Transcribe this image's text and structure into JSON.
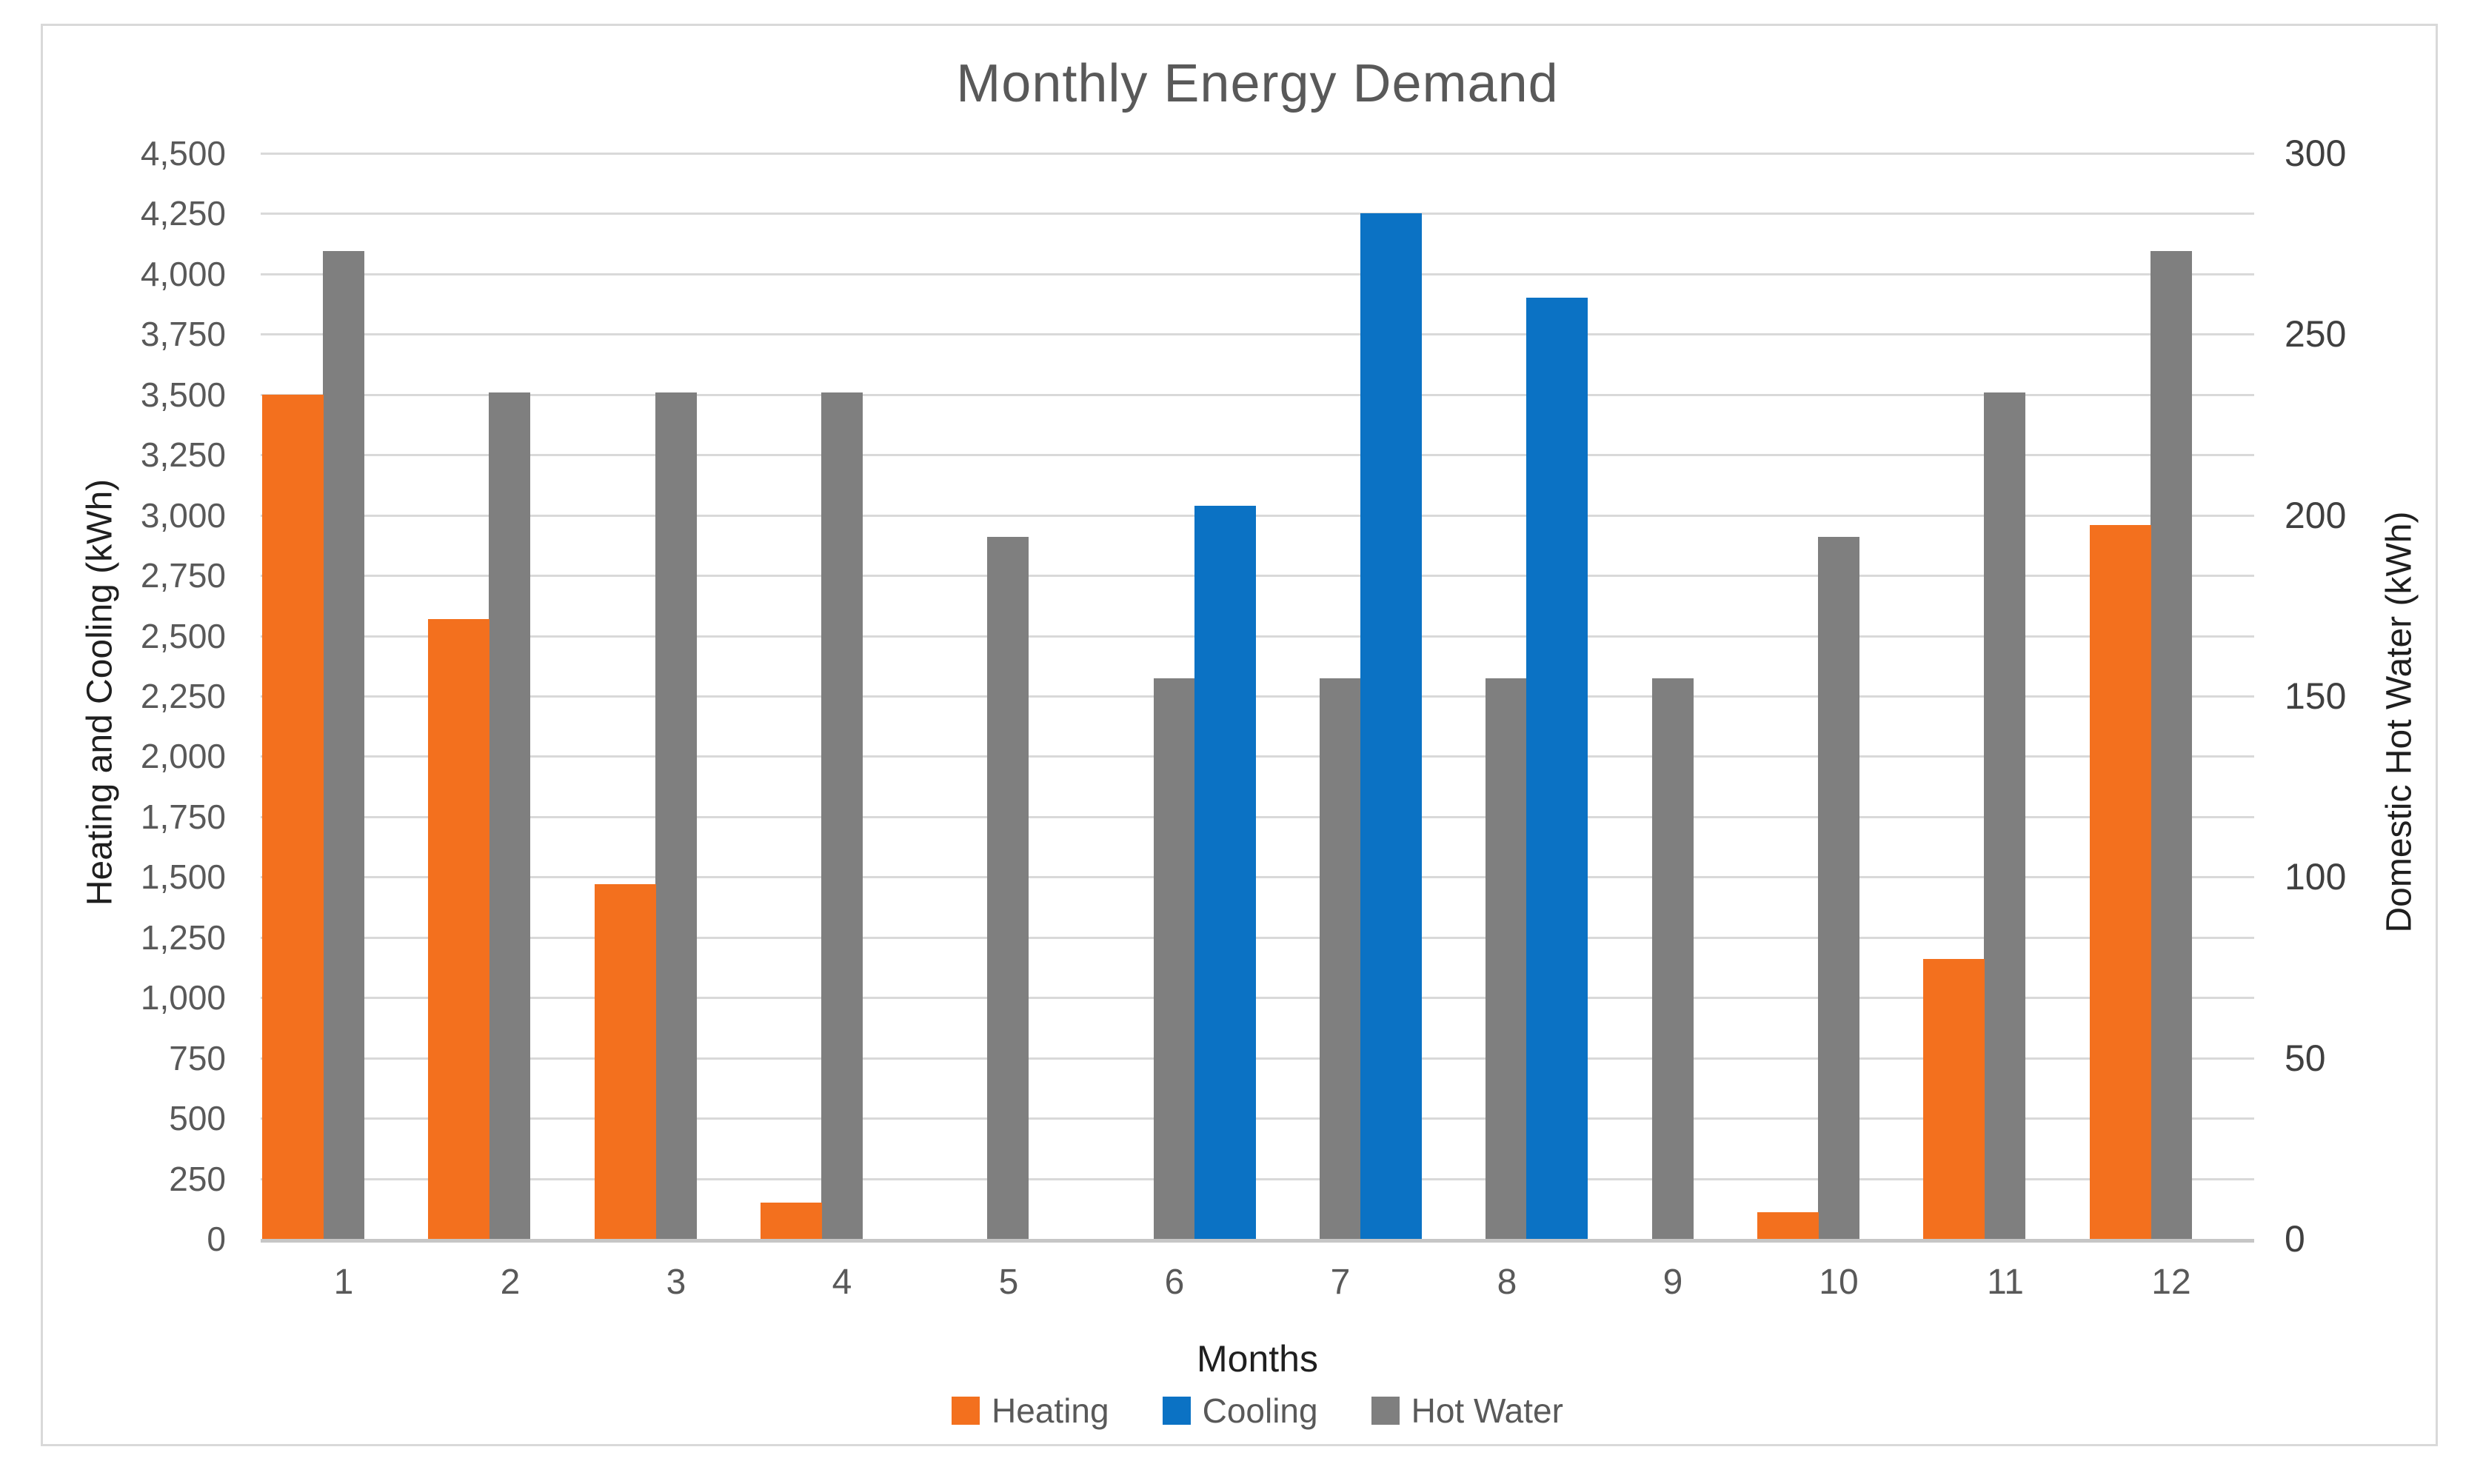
{
  "chart_data": {
    "type": "bar",
    "title": "Monthly Energy Demand",
    "categories": [
      "1",
      "2",
      "3",
      "4",
      "5",
      "6",
      "7",
      "8",
      "9",
      "10",
      "11",
      "12"
    ],
    "series": [
      {
        "name": "Heating",
        "axis": "left",
        "color": "#F3701E",
        "values": [
          3500,
          2570,
          1470,
          150,
          0,
          0,
          0,
          0,
          0,
          110,
          1160,
          2960
        ]
      },
      {
        "name": "Cooling",
        "axis": "left",
        "color": "#0B72C4",
        "values": [
          0,
          0,
          0,
          0,
          0,
          3040,
          4250,
          3900,
          0,
          0,
          0,
          0
        ]
      },
      {
        "name": "Hot Water",
        "axis": "right",
        "color": "#7F7F7F",
        "values": [
          273,
          234,
          234,
          234,
          194,
          155,
          155,
          155,
          155,
          194,
          234,
          273
        ]
      }
    ],
    "xlabel": "Months",
    "ylabel_left": "Heating and Cooling (kWh)",
    "ylabel_right": "Domestic Hot Water (kWh)",
    "ylim_left": [
      0,
      4500
    ],
    "ylim_right": [
      0,
      300
    ],
    "ytick_step_left": 250,
    "ytick_step_right": 50,
    "grid": true,
    "legend_position": "bottom",
    "yticks_left_labels": [
      "0",
      "250",
      "500",
      "750",
      "1,000",
      "1,250",
      "1,500",
      "1,750",
      "2,000",
      "2,250",
      "2,500",
      "2,750",
      "3,000",
      "3,250",
      "3,500",
      "3,750",
      "4,000",
      "4,250",
      "4,500"
    ],
    "yticks_right_labels": [
      "0",
      "50",
      "100",
      "150",
      "200",
      "250",
      "300"
    ]
  },
  "colors": {
    "grid": "#D9D9D9",
    "axis_line": "#C6C6C6",
    "frame_border": "#D9D9D9",
    "title_text": "#595959",
    "tick_text_left": "#595959",
    "tick_text_right": "#404040",
    "axis_title_text": "#1f1f1f",
    "legend_text": "#595959",
    "background": "#ffffff"
  }
}
